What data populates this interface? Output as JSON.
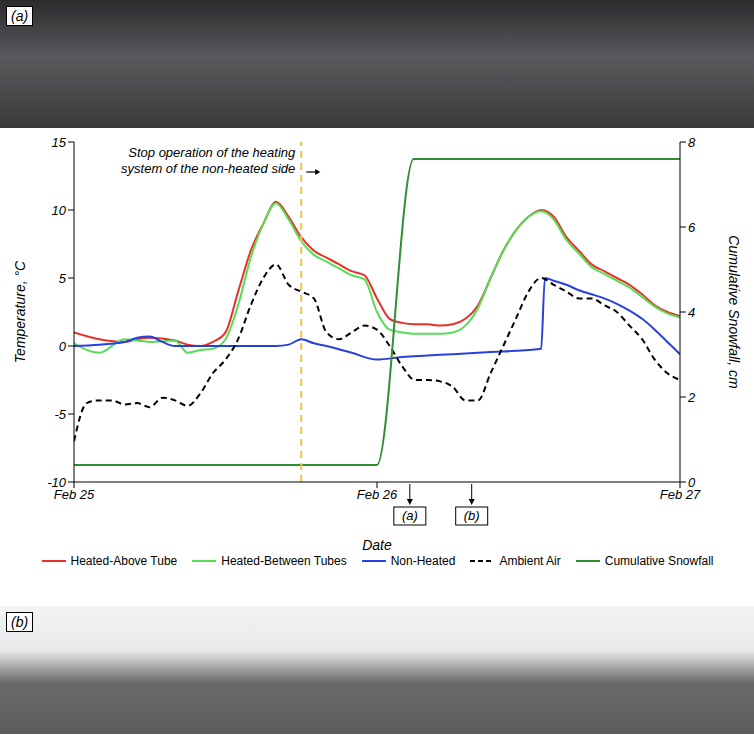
{
  "photos": [
    {
      "label": "(a)"
    },
    {
      "label": "(b)"
    }
  ],
  "chart_data": {
    "type": "line",
    "x_label": "Date",
    "y_label": "Temperature, °C",
    "y2_label": "Cumulative Snowfall, cm",
    "xlim": [
      0,
      48
    ],
    "xticks": [
      {
        "value": 0,
        "label": "Feb 25"
      },
      {
        "value": 24,
        "label": "Feb 26"
      },
      {
        "value": 48,
        "label": "Feb 27"
      }
    ],
    "ylim": [
      -10,
      15
    ],
    "yticks": [
      -10,
      -5,
      0,
      5,
      10,
      15
    ],
    "y2lim": [
      0,
      8
    ],
    "y2ticks": [
      0,
      2,
      4,
      6,
      8
    ],
    "legend": "bottom",
    "series": [
      {
        "name": "Heated-Above Tube",
        "color": "#e8302a",
        "line_style": "solid",
        "x": [
          0,
          2,
          4,
          5,
          6,
          8,
          9,
          10,
          11,
          12,
          13,
          14,
          15,
          16,
          17,
          18,
          19,
          20,
          21,
          22,
          23,
          24,
          25,
          26,
          27,
          28,
          29,
          30,
          31,
          32,
          33,
          34,
          35,
          36,
          37,
          38,
          39,
          40,
          41,
          42,
          43,
          44,
          45,
          46,
          47,
          48
        ],
        "values": [
          1,
          0.5,
          0.3,
          0.5,
          0.6,
          0.4,
          0.1,
          0,
          0.3,
          1,
          4,
          7,
          9,
          10.6,
          9.5,
          8,
          7,
          6.5,
          6,
          5.5,
          5.2,
          3.5,
          2,
          1.7,
          1.6,
          1.6,
          1.5,
          1.6,
          2,
          3,
          5,
          7,
          8.5,
          9.5,
          10,
          9.5,
          8,
          7,
          6,
          5.5,
          5,
          4.5,
          3.8,
          3,
          2.5,
          2.2
        ]
      },
      {
        "name": "Heated-Between Tubes",
        "color": "#55dd55",
        "line_style": "solid",
        "x": [
          0,
          2,
          4,
          5,
          6,
          8,
          9,
          10,
          11,
          12,
          13,
          14,
          15,
          16,
          17,
          18,
          19,
          20,
          21,
          22,
          23,
          24,
          25,
          26,
          27,
          28,
          29,
          30,
          31,
          32,
          33,
          34,
          35,
          36,
          37,
          38,
          39,
          40,
          41,
          42,
          43,
          44,
          45,
          46,
          47,
          48
        ],
        "values": [
          0.2,
          -0.5,
          0.5,
          0.4,
          0.3,
          0.4,
          -0.5,
          -0.3,
          -0.2,
          0.5,
          3,
          6.5,
          9,
          10.5,
          9.3,
          7.7,
          6.7,
          6.2,
          5.7,
          5.2,
          4.9,
          2.5,
          1.2,
          1,
          0.9,
          0.9,
          0.9,
          1,
          1.5,
          2.8,
          5,
          7,
          8.5,
          9.5,
          9.9,
          9.3,
          7.8,
          6.8,
          5.8,
          5.3,
          4.8,
          4.3,
          3.6,
          2.9,
          2.4,
          2.1
        ]
      },
      {
        "name": "Non-Heated",
        "color": "#2a3fe0",
        "line_style": "solid",
        "x": [
          0,
          2,
          4,
          5,
          6,
          7,
          8,
          10,
          12,
          14,
          16,
          17,
          18,
          19,
          20,
          22,
          24,
          26,
          28,
          30,
          32,
          34,
          36,
          37,
          37.3,
          38,
          39,
          40,
          41,
          42,
          43,
          44,
          45,
          46,
          47,
          48
        ],
        "values": [
          0,
          0.1,
          0.3,
          0.6,
          0.7,
          0.3,
          0,
          0,
          0,
          0,
          0,
          0.1,
          0.5,
          0.2,
          0,
          -0.5,
          -1,
          -0.8,
          -0.7,
          -0.6,
          -0.5,
          -0.4,
          -0.3,
          -0.2,
          5,
          4.8,
          4.5,
          4.1,
          3.8,
          3.5,
          3.1,
          2.6,
          2,
          1.2,
          0.3,
          -0.6
        ]
      },
      {
        "name": "Ambient Air",
        "color": "#000000",
        "line_style": "dashed",
        "x": [
          0,
          1,
          2,
          3,
          4,
          5,
          6,
          7,
          8,
          9,
          10,
          11,
          12,
          13,
          14,
          15,
          16,
          17,
          18,
          19,
          20,
          21,
          22,
          23,
          24,
          25,
          26,
          27,
          28,
          29,
          30,
          31,
          32,
          33,
          34,
          35,
          36,
          37,
          38,
          39,
          40,
          41,
          42,
          43,
          44,
          45,
          46,
          47,
          48
        ],
        "values": [
          -7,
          -4.2,
          -4,
          -4,
          -4.3,
          -4.2,
          -4.5,
          -3.8,
          -4,
          -4.4,
          -3.5,
          -2,
          -1,
          0.5,
          3,
          5,
          6,
          4.5,
          4,
          3.5,
          1,
          0.5,
          1,
          1.5,
          1.2,
          0,
          -1.5,
          -2.5,
          -2.5,
          -2.6,
          -3,
          -4,
          -4,
          -2,
          0,
          2,
          4,
          5,
          4.5,
          4,
          3.5,
          3.5,
          3,
          2.5,
          1.5,
          0.5,
          -1,
          -2,
          -2.5
        ]
      },
      {
        "name": "Cumulative Snowfall",
        "color": "#2f8f2f",
        "line_style": "solid",
        "axis": "y2",
        "x": [
          0,
          24,
          26.9,
          48
        ],
        "values": [
          0.4,
          0.4,
          7.6,
          7.6
        ]
      }
    ],
    "annotations": [
      {
        "x": 18,
        "text": "Stop operation of the heating system of the non-heated side",
        "color": "#f5c242",
        "line_style": "dashed"
      }
    ],
    "markers": [
      {
        "x": 26.6,
        "label": "(a)"
      },
      {
        "x": 31.5,
        "label": "(b)"
      }
    ]
  }
}
